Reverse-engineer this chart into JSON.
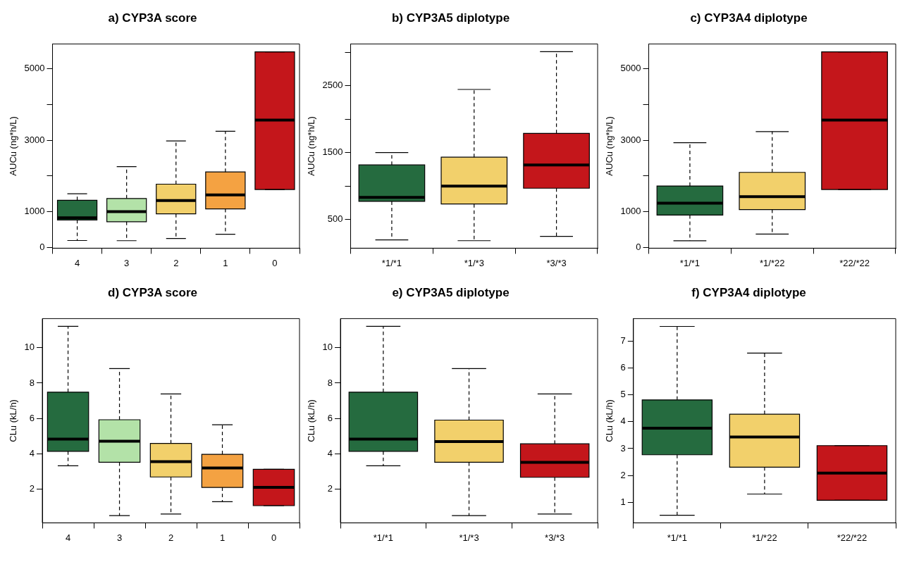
{
  "chart_data": [
    {
      "type": "box",
      "title": "a) CYP3A score",
      "ylabel": "AUCu (ng*h/L)",
      "categories": [
        "4",
        "3",
        "2",
        "1",
        "0"
      ],
      "colors": [
        "#256b3f",
        "#b3e2a8",
        "#f2d06b",
        "#f4a242",
        "#c4161b"
      ],
      "ylim": [
        -20,
        5690
      ],
      "yticks": [
        0,
        1000,
        {
          "value": 2000,
          "label": null
        },
        3000,
        {
          "value": 4000,
          "label": null
        },
        5000
      ],
      "boxes": [
        {
          "low": 195,
          "q1": 770,
          "median": 830,
          "q3": 1320,
          "high": 1500
        },
        {
          "low": 190,
          "q1": 720,
          "median": 1000,
          "q3": 1370,
          "high": 2260
        },
        {
          "low": 250,
          "q1": 940,
          "median": 1310,
          "q3": 1770,
          "high": 2980
        },
        {
          "low": 370,
          "q1": 1080,
          "median": 1470,
          "q3": 2110,
          "high": 3250
        },
        {
          "low": 1620,
          "q1": 1620,
          "median": 3560,
          "q3": 5470,
          "high": 5470
        }
      ]
    },
    {
      "type": "box",
      "title": "b) CYP3A5 diplotype",
      "ylabel": "AUCu (ng*h/L)",
      "categories": [
        "*1/*1",
        "*1/*3",
        "*3/*3"
      ],
      "colors": [
        "#256b3f",
        "#f2d06b",
        "#c4161b"
      ],
      "ylim": [
        72,
        3124
      ],
      "yticks": [
        500,
        {
          "value": 1000,
          "label": null
        },
        1500,
        {
          "value": 2000,
          "label": null
        },
        2500,
        {
          "value": 3000,
          "label": null
        }
      ],
      "boxes": [
        {
          "low": 196,
          "q1": 772,
          "median": 832,
          "q3": 1316,
          "high": 1500
        },
        {
          "low": 184,
          "q1": 732,
          "median": 1000,
          "q3": 1432,
          "high": 2444
        },
        {
          "low": 248,
          "q1": 968,
          "median": 1316,
          "q3": 1788,
          "high": 3008
        }
      ]
    },
    {
      "type": "box",
      "title": "c) CYP3A4 diplotype",
      "ylabel": "AUCu (ng*h/L)",
      "categories": [
        "*1/*1",
        "*1/*22",
        "*22/*22"
      ],
      "colors": [
        "#256b3f",
        "#f2d06b",
        "#c4161b"
      ],
      "ylim": [
        -20,
        5690
      ],
      "yticks": [
        0,
        1000,
        {
          "value": 2000,
          "label": null
        },
        3000,
        {
          "value": 4000,
          "label": null
        },
        5000
      ],
      "boxes": [
        {
          "low": 187,
          "q1": 905,
          "median": 1240,
          "q3": 1720,
          "high": 2930
        },
        {
          "low": 374,
          "q1": 1060,
          "median": 1420,
          "q3": 2100,
          "high": 3240
        },
        {
          "low": 1620,
          "q1": 1620,
          "median": 3560,
          "q3": 5470,
          "high": 5470
        }
      ]
    },
    {
      "type": "box",
      "title": "d) CYP3A score",
      "ylabel": "CLu (kL/h)",
      "categories": [
        "4",
        "3",
        "2",
        "1",
        "0"
      ],
      "colors": [
        "#256b3f",
        "#b3e2a8",
        "#f2d06b",
        "#f4a242",
        "#c4161b"
      ],
      "ylim": [
        0.11,
        11.64
      ],
      "yticks": [
        2,
        4,
        6,
        8,
        10
      ],
      "boxes": [
        {
          "low": 3.33,
          "q1": 4.15,
          "median": 4.84,
          "q3": 7.49,
          "high": 11.2
        },
        {
          "low": 0.52,
          "q1": 3.53,
          "median": 4.72,
          "q3": 5.93,
          "high": 8.82
        },
        {
          "low": 0.61,
          "q1": 2.7,
          "median": 3.57,
          "q3": 4.59,
          "high": 7.39
        },
        {
          "low": 1.3,
          "q1": 2.11,
          "median": 3.21,
          "q3": 3.98,
          "high": 5.65
        },
        {
          "low": 1.08,
          "q1": 1.08,
          "median": 2.11,
          "q3": 3.13,
          "high": 3.13
        }
      ]
    },
    {
      "type": "box",
      "title": "e) CYP3A5 diplotype",
      "ylabel": "CLu (kL/h)",
      "categories": [
        "*1/*1",
        "*1/*3",
        "*3/*3"
      ],
      "colors": [
        "#256b3f",
        "#f2d06b",
        "#c4161b"
      ],
      "ylim": [
        0.11,
        11.64
      ],
      "yticks": [
        2,
        4,
        6,
        8,
        10
      ],
      "boxes": [
        {
          "low": 3.33,
          "q1": 4.15,
          "median": 4.84,
          "q3": 7.49,
          "high": 11.2
        },
        {
          "low": 0.52,
          "q1": 3.53,
          "median": 4.7,
          "q3": 5.91,
          "high": 8.82
        },
        {
          "low": 0.61,
          "q1": 2.68,
          "median": 3.53,
          "q3": 4.57,
          "high": 7.39
        }
      ]
    },
    {
      "type": "box",
      "title": "f) CYP3A4 diplotype",
      "ylabel": "CLu (kL/h)",
      "categories": [
        "*1/*1",
        "*1/*22",
        "*22/*22"
      ],
      "colors": [
        "#256b3f",
        "#f2d06b",
        "#c4161b"
      ],
      "ylim": [
        0.24,
        7.83
      ],
      "yticks": [
        1,
        2,
        3,
        4,
        5,
        6,
        7
      ],
      "boxes": [
        {
          "low": 0.52,
          "q1": 2.77,
          "median": 3.76,
          "q3": 4.81,
          "high": 7.54
        },
        {
          "low": 1.31,
          "q1": 2.31,
          "median": 3.43,
          "q3": 4.28,
          "high": 6.55
        },
        {
          "low": 1.08,
          "q1": 1.08,
          "median": 2.09,
          "q3": 3.11,
          "high": 3.11
        }
      ]
    }
  ]
}
